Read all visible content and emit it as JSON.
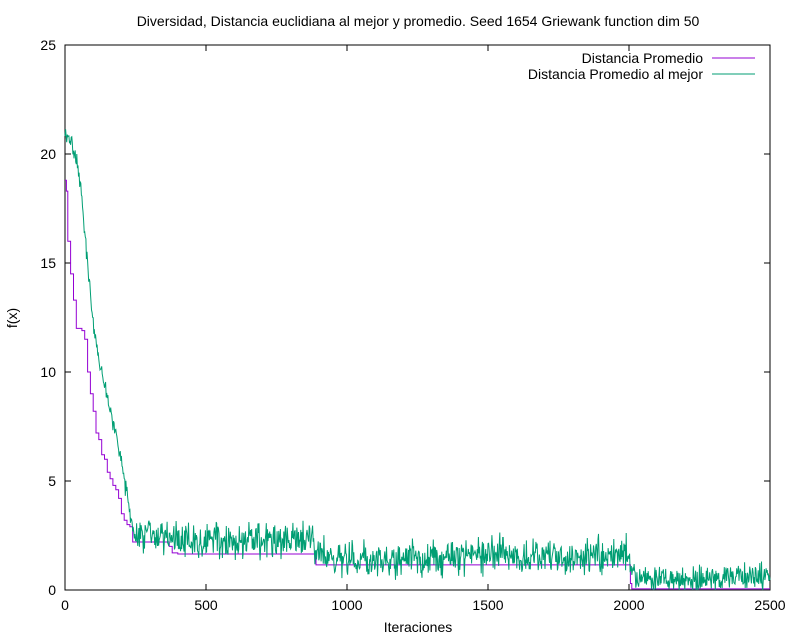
{
  "chart_data": {
    "type": "line",
    "title": "Diversidad, Distancia euclidiana al mejor y promedio. Seed 1654 Griewank function dim 50",
    "xlabel": "Iteraciones",
    "ylabel": "f(x)",
    "xlim": [
      0,
      2500
    ],
    "ylim": [
      0,
      25
    ],
    "xticks": [
      0,
      500,
      1000,
      1500,
      2000,
      2500
    ],
    "yticks": [
      0,
      5,
      10,
      15,
      20,
      25
    ],
    "grid": false,
    "legend_position": "top-right",
    "series": [
      {
        "name": "Distancia Promedio",
        "color": "#9400d3",
        "x": [
          0,
          5,
          10,
          20,
          30,
          40,
          50,
          60,
          70,
          80,
          90,
          100,
          110,
          120,
          130,
          140,
          150,
          160,
          170,
          180,
          190,
          200,
          210,
          220,
          230,
          240,
          250,
          300,
          350,
          370,
          380,
          400,
          500,
          600,
          700,
          800,
          880,
          890,
          900,
          1000,
          1500,
          2000,
          2005,
          2010,
          2500
        ],
        "values": [
          18.8,
          18.3,
          16.0,
          14.5,
          13.3,
          12.0,
          12.0,
          11.9,
          11.5,
          10.0,
          9.0,
          8.2,
          7.2,
          6.9,
          6.2,
          6.0,
          5.4,
          5.1,
          4.8,
          4.6,
          4.2,
          3.5,
          3.2,
          3.0,
          2.9,
          2.2,
          2.2,
          2.2,
          2.2,
          2.0,
          1.7,
          1.65,
          1.65,
          1.65,
          1.65,
          1.65,
          1.65,
          1.15,
          1.15,
          1.15,
          1.15,
          1.15,
          0.3,
          0.05,
          0.05
        ]
      },
      {
        "name": "Distancia Promedio al mejor",
        "color": "#009e73",
        "x": [
          0,
          10,
          20,
          30,
          40,
          50,
          60,
          70,
          80,
          90,
          100,
          110,
          120,
          130,
          140,
          150,
          160,
          170,
          180,
          190,
          200,
          210,
          220,
          230,
          240,
          250,
          270,
          300,
          350,
          400,
          450,
          500,
          550,
          600,
          650,
          700,
          750,
          800,
          850,
          880,
          900,
          950,
          1000,
          1100,
          1200,
          1300,
          1400,
          1500,
          1550,
          1600,
          1700,
          1800,
          1900,
          1950,
          2000,
          2010,
          2030,
          2100,
          2200,
          2300,
          2400,
          2500
        ],
        "values": [
          21.0,
          20.8,
          20.5,
          20.2,
          19.8,
          19.0,
          18.0,
          16.5,
          15.0,
          13.5,
          12.3,
          11.3,
          10.5,
          10.0,
          9.5,
          8.8,
          8.2,
          7.8,
          7.2,
          6.5,
          5.9,
          5.0,
          4.3,
          3.5,
          2.8,
          2.6,
          2.6,
          2.6,
          2.5,
          2.3,
          2.2,
          2.3,
          2.3,
          2.3,
          2.2,
          2.2,
          2.3,
          2.2,
          2.4,
          2.3,
          1.8,
          1.5,
          1.4,
          1.3,
          1.4,
          1.4,
          1.5,
          1.6,
          1.7,
          1.6,
          1.5,
          1.5,
          1.6,
          1.7,
          1.6,
          0.8,
          0.5,
          0.5,
          0.5,
          0.6,
          0.6,
          0.6
        ]
      }
    ]
  }
}
